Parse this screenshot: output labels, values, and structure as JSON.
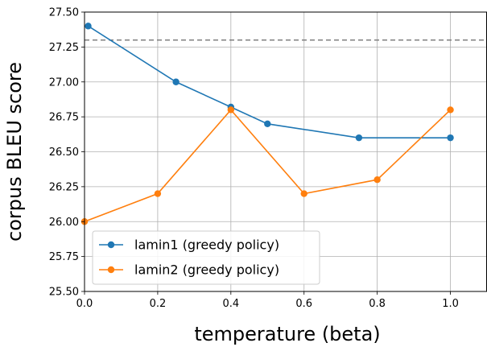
{
  "chart_data": {
    "type": "line",
    "title": "",
    "xlabel": "temperature (beta)",
    "ylabel": "corpus BLEU score",
    "xlim": [
      0.0,
      1.1
    ],
    "ylim": [
      25.5,
      27.5
    ],
    "xticks": [
      0.0,
      0.2,
      0.4,
      0.6,
      0.8,
      1.0
    ],
    "xtick_labels": [
      "0.0",
      "0.2",
      "0.4",
      "0.6",
      "0.8",
      "1.0"
    ],
    "yticks": [
      25.5,
      25.75,
      26.0,
      26.25,
      26.5,
      26.75,
      27.0,
      27.25,
      27.5
    ],
    "ytick_labels": [
      "25.50",
      "25.75",
      "26.00",
      "26.25",
      "26.50",
      "26.75",
      "27.00",
      "27.25",
      "27.50"
    ],
    "grid": true,
    "legend_position": "lower-left",
    "reference_line": {
      "y": 27.3,
      "style": "dashed",
      "color": "#808080"
    },
    "series": [
      {
        "name": "lamin1 (greedy policy)",
        "color": "#1f77b4",
        "x": [
          0.01,
          0.25,
          0.4,
          0.5,
          0.75,
          1.0
        ],
        "y": [
          27.4,
          27.0,
          26.82,
          26.7,
          26.6,
          26.6
        ]
      },
      {
        "name": "lamin2 (greedy policy)",
        "color": "#ff7f0e",
        "x": [
          0.0,
          0.2,
          0.4,
          0.6,
          0.8,
          1.0
        ],
        "y": [
          26.0,
          26.2,
          26.8,
          26.2,
          26.3,
          26.8
        ]
      }
    ]
  }
}
